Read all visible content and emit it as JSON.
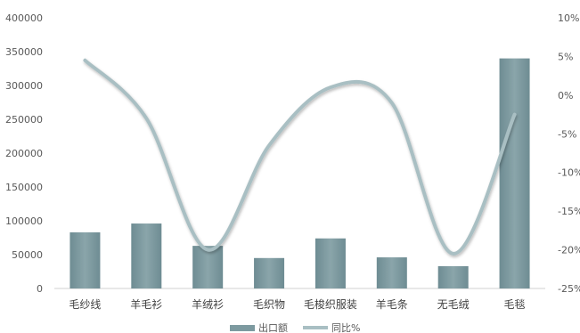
{
  "chart_data": {
    "type": "bar",
    "categories": [
      "毛纱线",
      "羊毛衫",
      "羊绒衫",
      "毛织物",
      "毛梭织服装",
      "羊毛条",
      "无毛绒",
      "毛毯"
    ],
    "series": [
      {
        "name": "出口额",
        "type": "bar",
        "axis": "left",
        "color": "#7d9aa0",
        "values": [
          83000,
          96000,
          63000,
          45000,
          74000,
          46000,
          33000,
          340000
        ]
      },
      {
        "name": "同比%",
        "type": "line",
        "axis": "right",
        "color": "#a9bfc3",
        "values": [
          4.5,
          -3.0,
          -20.0,
          -6.5,
          1.0,
          -1.0,
          -20.5,
          -2.5
        ]
      }
    ],
    "y_left": {
      "min": 0,
      "max": 400000,
      "ticks": [
        "0",
        "50000",
        "100000",
        "150000",
        "200000",
        "250000",
        "300000",
        "350000",
        "400000"
      ]
    },
    "y_right": {
      "min": -25,
      "max": 10,
      "ticks": [
        "-25%",
        "-20%",
        "-15%",
        "-10%",
        "-5%",
        "0%",
        "5%",
        "10%"
      ]
    },
    "legend_position": "bottom",
    "grid": false
  }
}
